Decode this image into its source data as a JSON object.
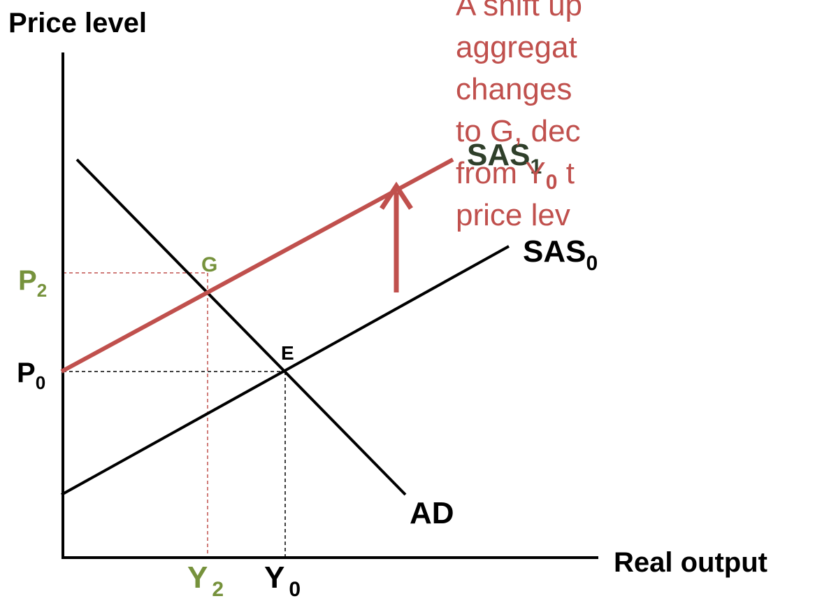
{
  "y_axis_label": "Price level",
  "x_axis_label": "Real output",
  "curves": [
    {
      "text": "SAS",
      "sub": "1"
    },
    {
      "text": "SAS",
      "sub": "0"
    },
    {
      "text": "AD"
    }
  ],
  "points": [
    {
      "label": "G"
    },
    {
      "label": "E"
    }
  ],
  "y_levels": [
    {
      "text": "P",
      "sub": "2"
    },
    {
      "text": "P",
      "sub": "0"
    }
  ],
  "x_levels": [
    {
      "text": "Y",
      "sub": "2"
    },
    {
      "text": "Y",
      "sub": "0"
    }
  ],
  "note_lines": [
    [
      "A shift up"
    ],
    [
      "aggregat"
    ],
    [
      "changes"
    ],
    [
      "to G, dec"
    ],
    [
      "from Y",
      "0",
      " t"
    ],
    [
      "price lev"
    ]
  ]
}
